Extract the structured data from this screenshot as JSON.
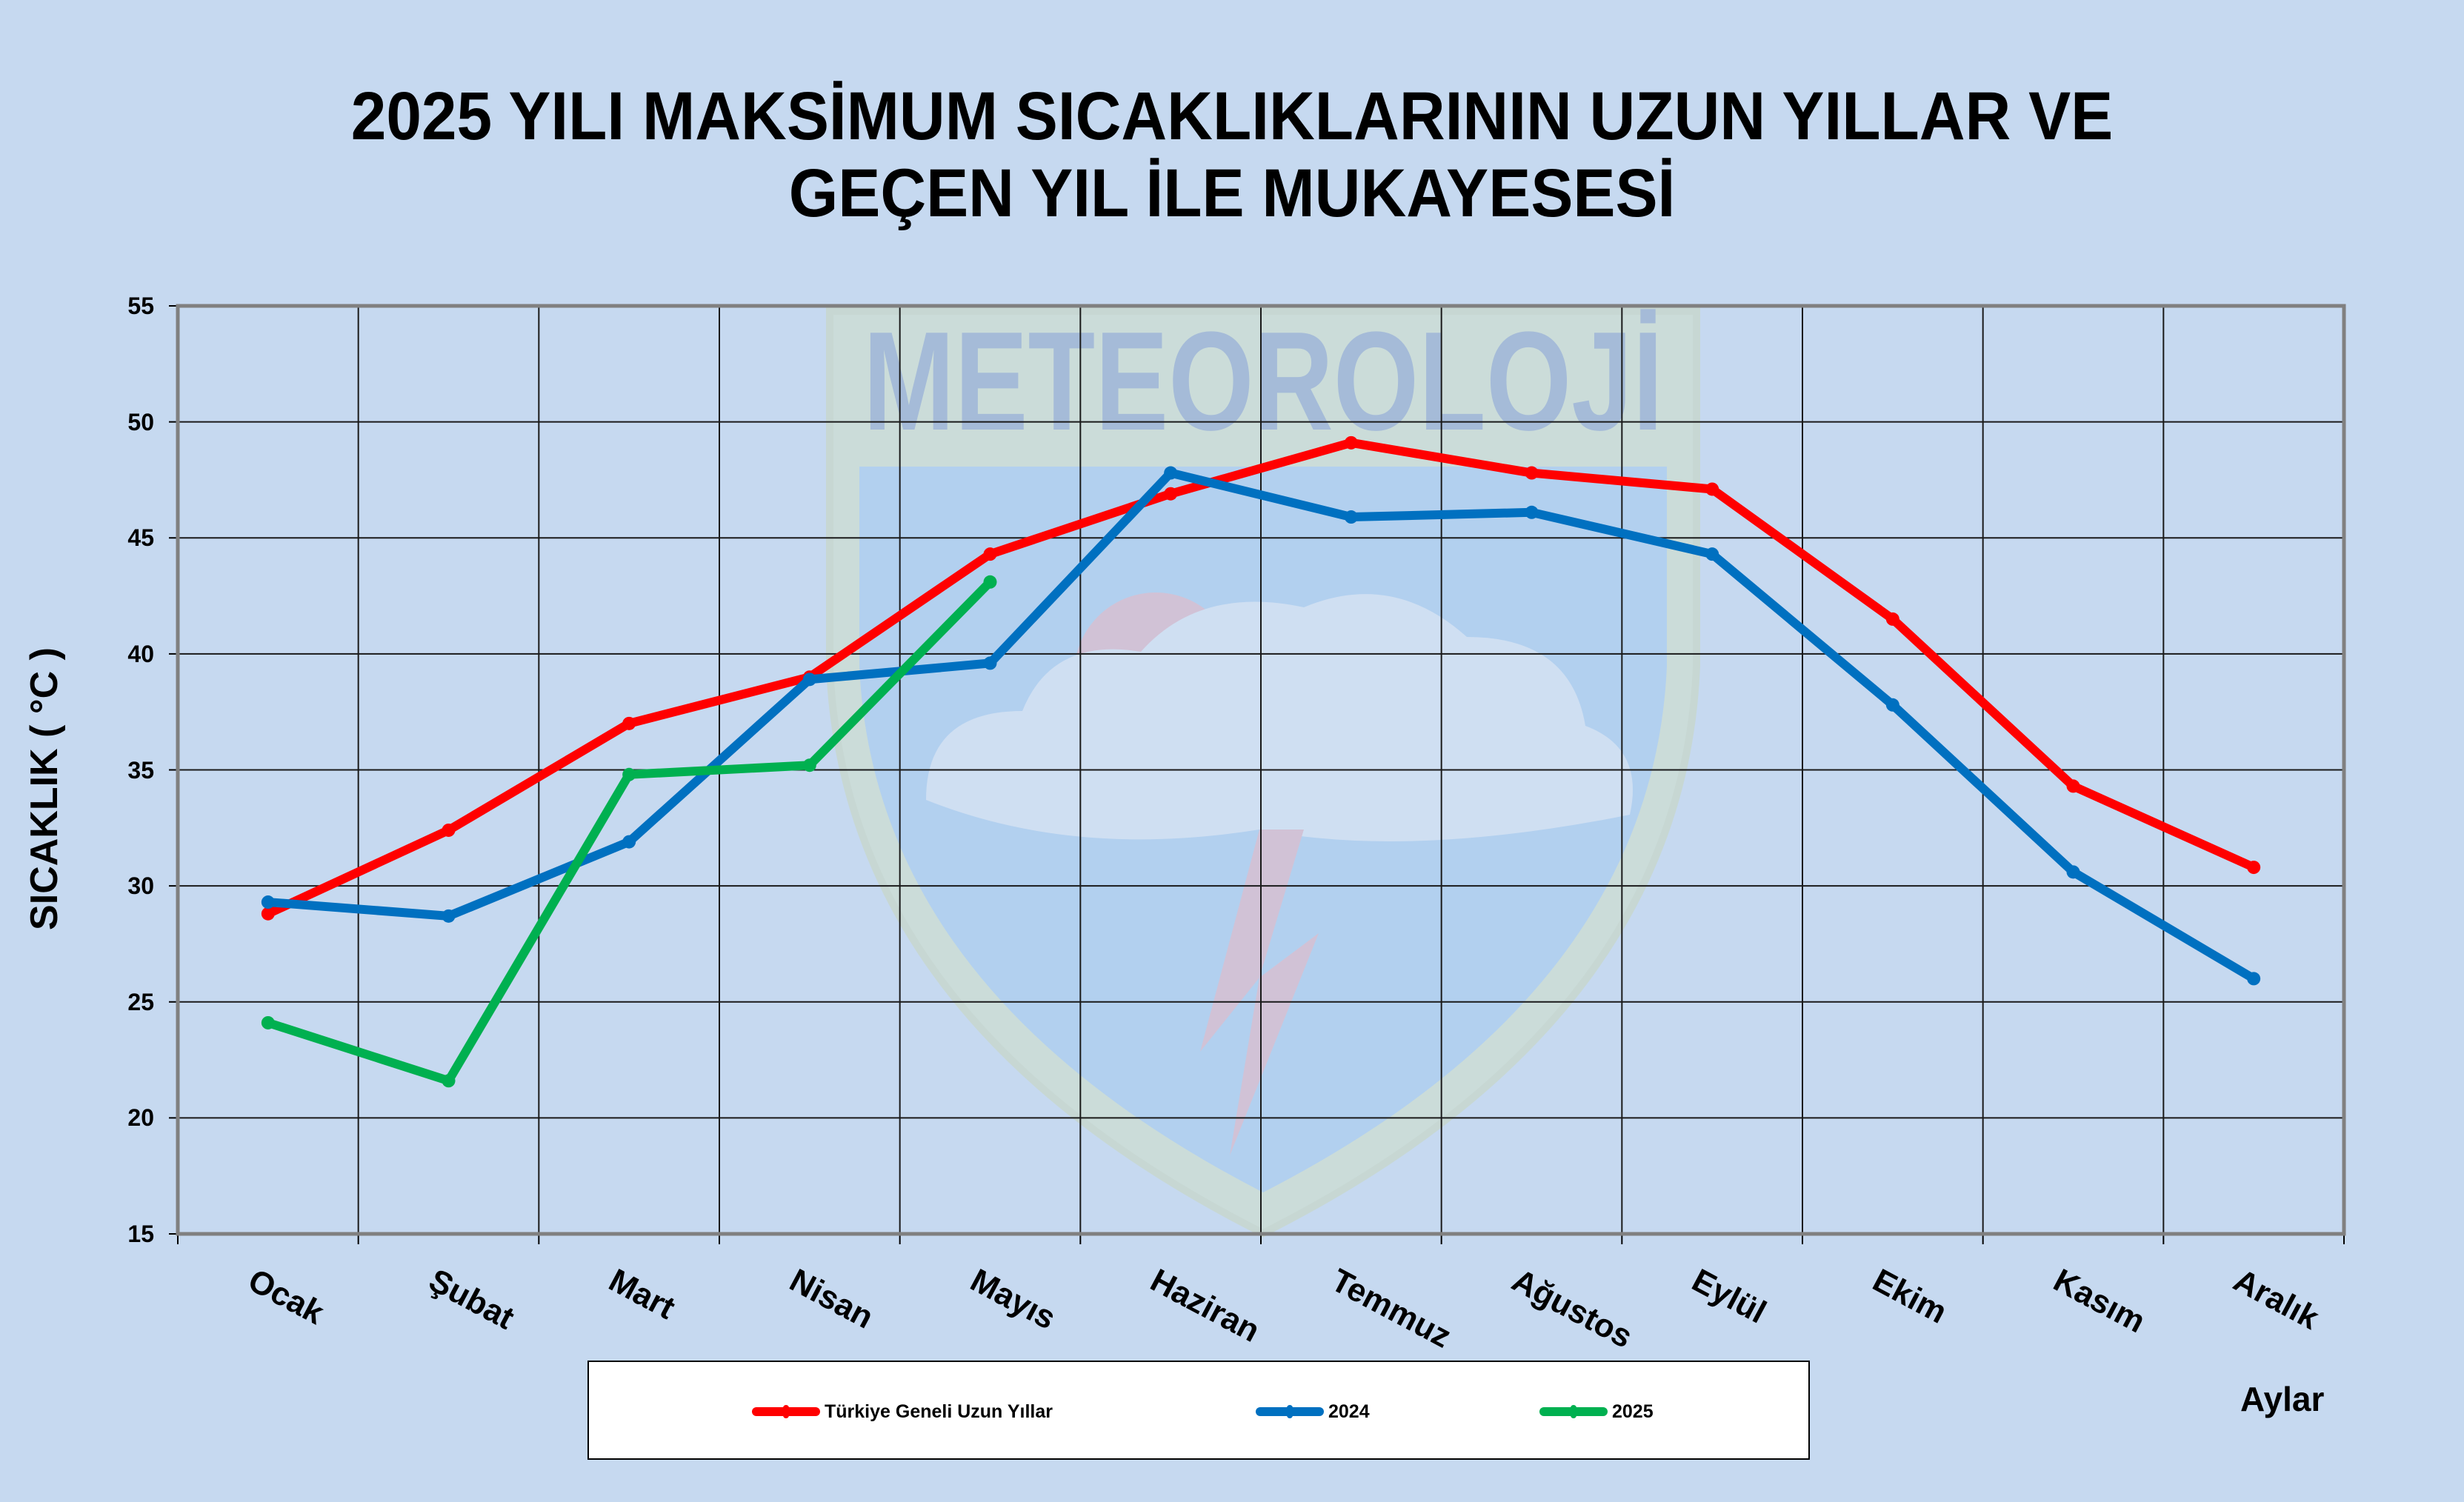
{
  "title": {
    "line1": "2025 YILI MAKSİMUM SICAKLIKLARININ UZUN YILLAR VE",
    "line2": "GEÇEN YIL İLE MUKAYESESİ"
  },
  "axes": {
    "ylabel": "SICAKLIK ( °C )",
    "xlabel": "Aylar",
    "yticks": [
      "55",
      "50",
      "45",
      "40",
      "35",
      "30",
      "25",
      "20",
      "15"
    ]
  },
  "watermark": {
    "text": "METEOROLOJİ"
  },
  "legend": {
    "items": [
      {
        "label": "Türkiye Geneli Uzun Yıllar",
        "color": "#ff0000"
      },
      {
        "label": "2024",
        "color": "#0070c0"
      },
      {
        "label": "2025",
        "color": "#00b050"
      }
    ]
  },
  "colors": {
    "background": "#c6d9f0",
    "grid": "#1a1a1a",
    "axis": "#808080",
    "series_long_term": "#ff0000",
    "series_2024": "#0070c0",
    "series_2025": "#00b050"
  },
  "chart_data": {
    "type": "line",
    "title": "2025 YILI MAKSİMUM SICAKLIKLARININ UZUN YILLAR VE GEÇEN YIL İLE MUKAYESESİ",
    "xlabel": "Aylar",
    "ylabel": "SICAKLIK ( °C )",
    "ylim": [
      15,
      55
    ],
    "ytick_step": 5,
    "grid": true,
    "legend_position": "bottom",
    "categories": [
      "Ocak",
      "Şubat",
      "Mart",
      "Nisan",
      "Mayıs",
      "Haziran",
      "Temmuz",
      "Ağustos",
      "Eylül",
      "Ekim",
      "Kasım",
      "Aralık"
    ],
    "series": [
      {
        "name": "Türkiye Geneli Uzun Yıllar",
        "color": "#ff0000",
        "values": [
          28.8,
          32.4,
          37.0,
          39.0,
          44.3,
          46.9,
          49.1,
          47.8,
          47.1,
          41.5,
          34.3,
          30.8
        ]
      },
      {
        "name": "2024",
        "color": "#0070c0",
        "values": [
          29.3,
          28.7,
          31.9,
          38.9,
          39.6,
          47.8,
          45.9,
          46.1,
          44.3,
          37.8,
          30.6,
          26.0
        ]
      },
      {
        "name": "2025",
        "color": "#00b050",
        "values": [
          24.1,
          21.6,
          34.8,
          35.2,
          43.1,
          null,
          null,
          null,
          null,
          null,
          null,
          null
        ]
      }
    ]
  }
}
